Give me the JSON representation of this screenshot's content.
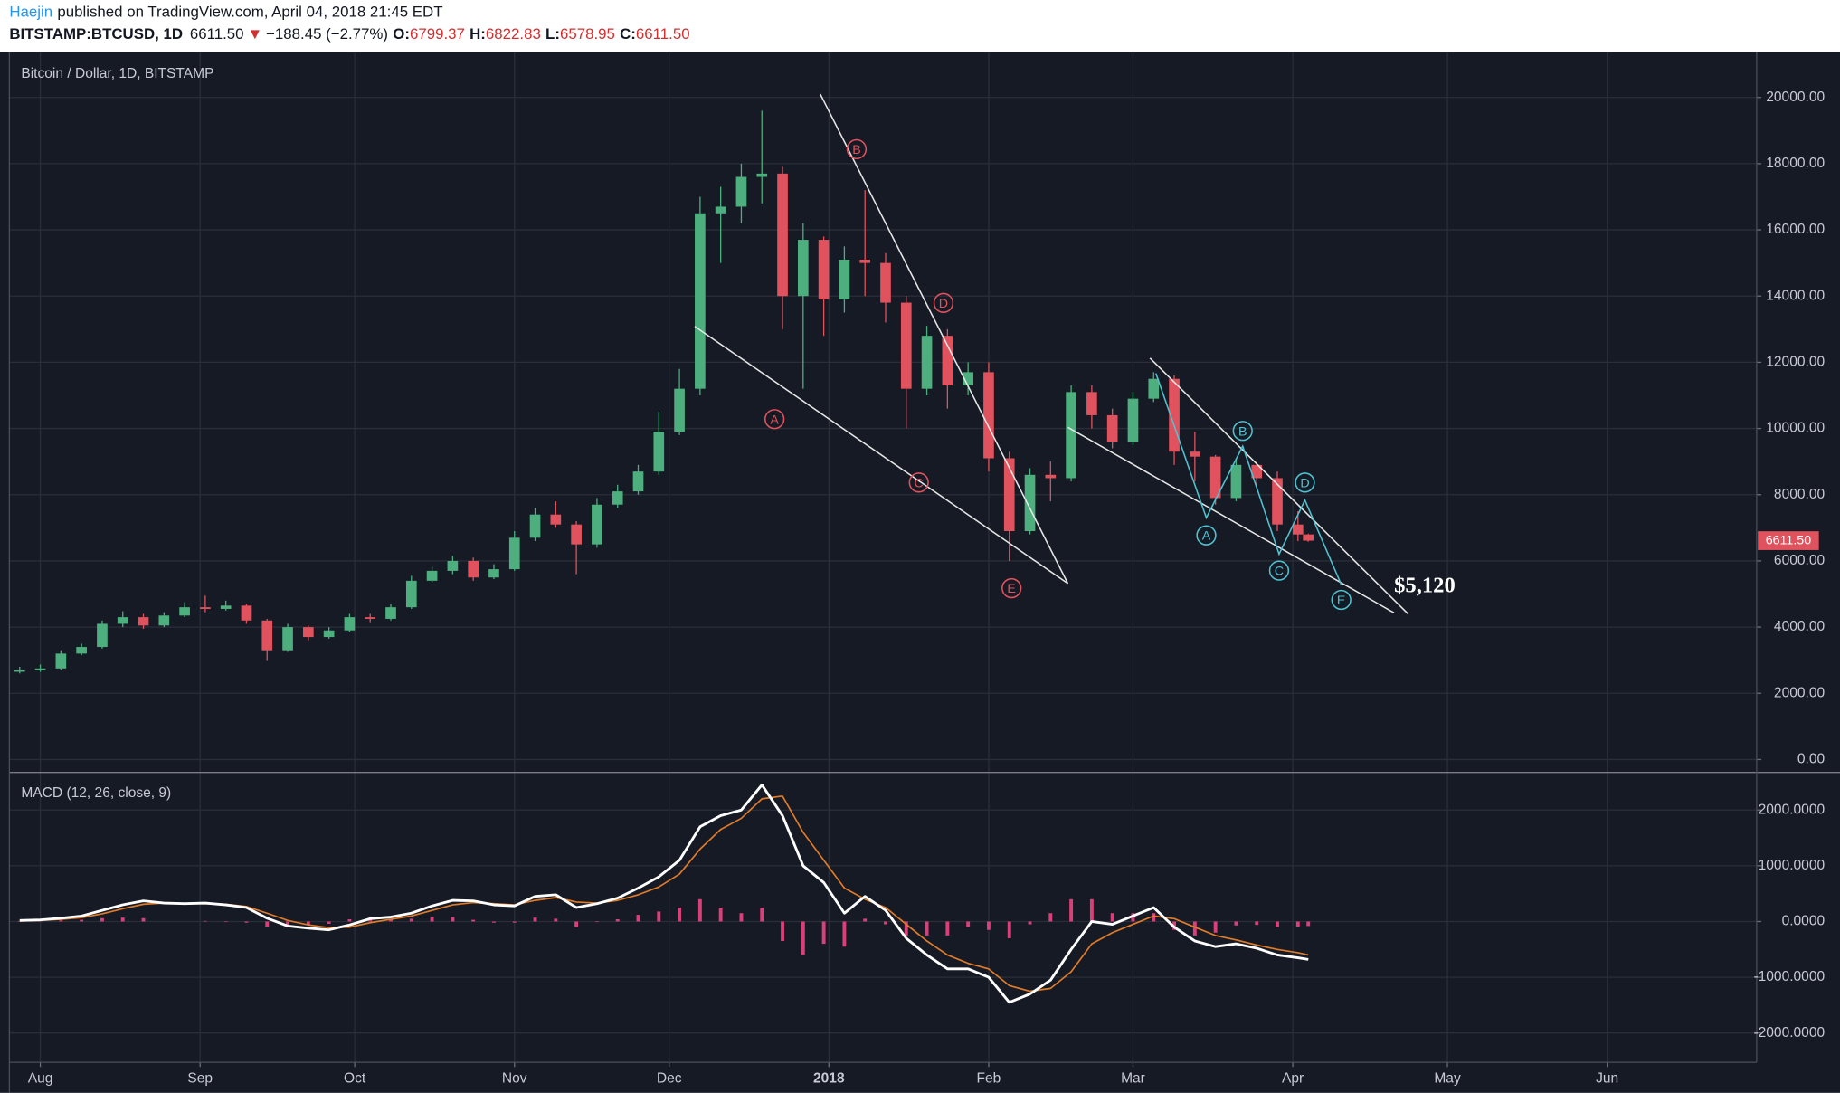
{
  "header": {
    "author": "Haejin",
    "published": "published on TradingView.com, April 04, 2018 21:45 EDT",
    "symbol": "BITSTAMP:BTCUSD, 1D",
    "last": "6611.50",
    "direction": "▼",
    "change": "−188.45 (−2.77%)",
    "open_label": "O:",
    "open": "6799.37",
    "high_label": "H:",
    "high": "6822.83",
    "low_label": "L:",
    "low": "6578.95",
    "close_label": "C:",
    "close": "6611.50"
  },
  "chart_data": [
    {
      "type": "candlestick",
      "title": "Bitcoin / Dollar, 1D, BITSTAMP",
      "up_color": "#4caf7d",
      "down_color": "#e0525d",
      "x": [
        -4,
        0,
        4,
        8,
        12,
        16,
        20,
        24,
        28,
        32,
        36,
        40,
        44,
        48,
        52,
        56,
        60,
        64,
        68,
        72,
        76,
        80,
        84,
        88,
        92,
        96,
        100,
        104,
        108,
        112,
        116,
        120,
        124,
        128,
        132,
        136,
        140,
        144,
        148,
        152,
        156,
        160,
        164,
        168,
        172,
        176,
        180,
        184,
        188,
        192,
        196,
        200,
        204,
        208,
        212,
        216,
        220,
        224,
        228,
        232,
        236,
        240,
        244,
        246
      ],
      "open": [
        2650,
        2700,
        2750,
        3200,
        3400,
        4100,
        4300,
        4050,
        4350,
        4600,
        4550,
        4650,
        4200,
        3300,
        4000,
        3700,
        3900,
        4300,
        4250,
        4600,
        5400,
        5700,
        6000,
        5500,
        5750,
        6700,
        7400,
        7100,
        6500,
        7700,
        8100,
        8700,
        9900,
        11200,
        16500,
        16700,
        17600,
        17700,
        14000,
        15700,
        13900,
        15100,
        15000,
        13800,
        11200,
        12800,
        11300,
        11700,
        9100,
        6900,
        8600,
        8500,
        11100,
        10400,
        9600,
        10900,
        11500,
        9300,
        9150,
        7900,
        8900,
        8500,
        7100,
        6799.37
      ],
      "high": [
        2800,
        2870,
        3300,
        3500,
        4200,
        4480,
        4400,
        4450,
        4750,
        4950,
        4800,
        4700,
        4250,
        4100,
        4050,
        4000,
        4400,
        4400,
        4700,
        5550,
        5850,
        6150,
        6100,
        5900,
        6900,
        7600,
        7800,
        7200,
        7900,
        8300,
        8900,
        10500,
        11800,
        17000,
        17300,
        18000,
        19600,
        17900,
        16200,
        15800,
        15500,
        17200,
        15300,
        14000,
        13100,
        13000,
        12000,
        12000,
        9300,
        8800,
        9000,
        11300,
        11300,
        10600,
        11100,
        11700,
        11600,
        9900,
        9200,
        9100,
        9000,
        8700,
        7500,
        6822.83
      ],
      "low": [
        2600,
        2650,
        2700,
        3150,
        3350,
        4000,
        3950,
        4000,
        4300,
        4450,
        4500,
        4100,
        3000,
        3250,
        3600,
        3650,
        3850,
        4150,
        4200,
        4550,
        5350,
        5600,
        5400,
        5450,
        5700,
        6600,
        7000,
        5600,
        6400,
        7600,
        8000,
        8600,
        9800,
        11000,
        15000,
        16200,
        16800,
        13000,
        11200,
        12800,
        13500,
        14000,
        13200,
        10000,
        11000,
        10600,
        11000,
        8700,
        6000,
        6800,
        7800,
        8400,
        10000,
        9400,
        9500,
        10800,
        8900,
        8400,
        7700,
        7800,
        8300,
        6900,
        6600,
        6578.95
      ],
      "close": [
        2700,
        2750,
        3200,
        3400,
        4100,
        4300,
        4050,
        4350,
        4600,
        4550,
        4650,
        4200,
        3300,
        4000,
        3700,
        3900,
        4300,
        4250,
        4600,
        5400,
        5700,
        6000,
        5500,
        5750,
        6700,
        7400,
        7100,
        6500,
        7700,
        8100,
        8700,
        9900,
        11200,
        16500,
        16700,
        17600,
        17700,
        14000,
        15700,
        13900,
        15100,
        15000,
        13800,
        11200,
        12800,
        11300,
        11700,
        9100,
        6900,
        8600,
        8500,
        11100,
        10400,
        9600,
        10900,
        11500,
        9300,
        9150,
        7900,
        8900,
        8500,
        7100,
        6799.37,
        6611.5
      ],
      "xlim": [
        -6,
        333
      ],
      "ylim": [
        -390,
        21380
      ],
      "yticks": [
        {
          "value": 0,
          "label": "0.00"
        },
        {
          "value": 2000,
          "label": "2000.00"
        },
        {
          "value": 4000,
          "label": "4000.00"
        },
        {
          "value": 6000,
          "label": "6000.00"
        },
        {
          "value": 8000,
          "label": "8000.00"
        },
        {
          "value": 10000,
          "label": "10000.00"
        },
        {
          "value": 12000,
          "label": "12000.00"
        },
        {
          "value": 14000,
          "label": "14000.00"
        },
        {
          "value": 16000,
          "label": "16000.00"
        },
        {
          "value": 18000,
          "label": "18000.00"
        },
        {
          "value": 20000,
          "label": "20000.00"
        }
      ],
      "grid": true,
      "waves": [
        {
          "color": "#e0525d",
          "labels": [
            "A",
            "B",
            "C",
            "D",
            "E"
          ]
        },
        {
          "color": "#4fc3d0",
          "labels": [
            "A",
            "B",
            "C",
            "D",
            "E"
          ]
        }
      ],
      "target": "$5,120"
    },
    {
      "type": "macd",
      "title": "MACD (12, 26, close, 9)",
      "x": [
        -4,
        0,
        4,
        8,
        12,
        16,
        20,
        24,
        28,
        32,
        36,
        40,
        44,
        48,
        52,
        56,
        60,
        64,
        68,
        72,
        76,
        80,
        84,
        88,
        92,
        96,
        100,
        104,
        108,
        112,
        116,
        120,
        124,
        128,
        132,
        136,
        140,
        144,
        148,
        152,
        156,
        160,
        164,
        168,
        172,
        176,
        180,
        184,
        188,
        192,
        196,
        200,
        204,
        208,
        212,
        216,
        220,
        224,
        228,
        232,
        236,
        240,
        244,
        246
      ],
      "series": [
        {
          "color": "#ffffff",
          "values": [
            20,
            30,
            60,
            100,
            200,
            300,
            370,
            330,
            320,
            330,
            300,
            250,
            60,
            -80,
            -120,
            -150,
            -60,
            50,
            80,
            150,
            280,
            380,
            370,
            300,
            280,
            450,
            480,
            250,
            320,
            420,
            600,
            800,
            1100,
            1700,
            1900,
            2000,
            2450,
            1900,
            1000,
            700,
            150,
            450,
            200,
            -300,
            -600,
            -850,
            -850,
            -1000,
            -1450,
            -1300,
            -1050,
            -500,
            0,
            -50,
            100,
            250,
            -100,
            -350,
            -450,
            -400,
            -480,
            -600,
            -650,
            -680
          ]
        },
        {
          "color": "#e07b29",
          "values": [
            10,
            20,
            40,
            70,
            140,
            230,
            310,
            330,
            320,
            320,
            310,
            270,
            150,
            20,
            -60,
            -110,
            -100,
            -20,
            40,
            100,
            200,
            300,
            340,
            320,
            300,
            380,
            430,
            350,
            330,
            380,
            480,
            620,
            850,
            1300,
            1650,
            1850,
            2200,
            2250,
            1600,
            1100,
            600,
            400,
            250,
            -50,
            -350,
            -600,
            -750,
            -850,
            -1150,
            -1250,
            -1200,
            -900,
            -400,
            -200,
            -50,
            100,
            50,
            -100,
            -250,
            -330,
            -420,
            -500,
            -560,
            -600
          ]
        }
      ],
      "histogram": {
        "color": "#d9407a",
        "values": [
          10,
          10,
          20,
          30,
          60,
          70,
          60,
          0,
          0,
          10,
          -10,
          -20,
          -90,
          -100,
          -60,
          -40,
          40,
          70,
          40,
          50,
          80,
          80,
          30,
          -20,
          -20,
          70,
          50,
          -100,
          -10,
          40,
          120,
          180,
          250,
          400,
          250,
          150,
          250,
          -350,
          -600,
          -400,
          -450,
          50,
          -50,
          -250,
          -250,
          -250,
          -100,
          -150,
          -300,
          -50,
          150,
          400,
          400,
          150,
          150,
          150,
          -150,
          -250,
          -200,
          -70,
          -60,
          -100,
          -90,
          -80
        ]
      },
      "xlim": [
        -6,
        333
      ],
      "ylim": [
        -2526,
        2674
      ],
      "yticks": [
        {
          "value": -2000,
          "label": "-2000.0000"
        },
        {
          "value": -1000,
          "label": "-1000.0000"
        },
        {
          "value": 0,
          "label": "0.0000"
        },
        {
          "value": 1000,
          "label": "1000.0000"
        },
        {
          "value": 2000,
          "label": "2000.0000"
        }
      ],
      "xticks": [
        {
          "value": 0,
          "label": "Aug"
        },
        {
          "value": 31,
          "label": "Sep"
        },
        {
          "value": 61,
          "label": "Oct"
        },
        {
          "value": 92,
          "label": "Nov"
        },
        {
          "value": 122,
          "label": "Dec"
        },
        {
          "value": 153,
          "label": "2018"
        },
        {
          "value": 184,
          "label": "Feb"
        },
        {
          "value": 212,
          "label": "Mar"
        },
        {
          "value": 243,
          "label": "Apr"
        },
        {
          "value": 273,
          "label": "May"
        },
        {
          "value": 304,
          "label": "Jun"
        }
      ],
      "grid": true
    }
  ]
}
